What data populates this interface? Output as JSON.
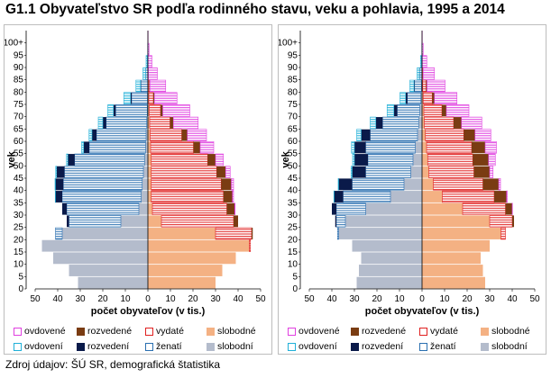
{
  "title": "G1.1 Obyvateľstvo SR podľa rodinného stavu, veku a pohlavia, 1995 a 2014",
  "source": "Zdroj údajov: ŠÚ SR, demografická štatistika",
  "colors": {
    "ovdovene": "#e040e0",
    "rozvedene": "#7a3c12",
    "vydate": "#e02020",
    "slobodne": "#f4b183",
    "ovdoveni": "#20b0d8",
    "rozvedeni": "#0a1a4a",
    "zenati": "#2a6fb0",
    "slobodni": "#b4bccc"
  },
  "legend": [
    {
      "key": "ovdovene",
      "label": "ovdovené",
      "style": "outline"
    },
    {
      "key": "rozvedene",
      "label": "rozvedené",
      "style": "fill"
    },
    {
      "key": "vydate",
      "label": "vydaté",
      "style": "outline"
    },
    {
      "key": "slobodne",
      "label": "slobodné",
      "style": "fill"
    },
    {
      "key": "ovdoveni",
      "label": "ovdovení",
      "style": "outline"
    },
    {
      "key": "rozvedeni",
      "label": "rozvedení",
      "style": "fill"
    },
    {
      "key": "zenati",
      "label": "ženatí",
      "style": "outline"
    },
    {
      "key": "slobodni",
      "label": "slobodní",
      "style": "fill"
    }
  ],
  "chart_data": [
    {
      "type": "bar",
      "orientation": "horizontal-stacked-pyramid",
      "panel": "1995",
      "xlabel": "počet obyvateľov (v tis.)",
      "ylabel": "vek",
      "xlim": [
        -50,
        50
      ],
      "xticks": [
        "50",
        "40",
        "30",
        "20",
        "10",
        "0",
        "10",
        "20",
        "30",
        "40",
        "50"
      ],
      "yticks": [
        "0",
        "5",
        "10",
        "15",
        "20",
        "25",
        "30",
        "35",
        "40",
        "45",
        "50",
        "55",
        "60",
        "65",
        "70",
        "75",
        "80",
        "85",
        "90",
        "95",
        "100+"
      ],
      "age_groups": [
        "0",
        "5",
        "10",
        "15",
        "20",
        "25",
        "30",
        "35",
        "40",
        "45",
        "50",
        "55",
        "60",
        "65",
        "70",
        "75",
        "80",
        "85",
        "90",
        "95",
        "100+"
      ],
      "men_order": [
        "slobodni",
        "zenati",
        "rozvedeni",
        "ovdoveni"
      ],
      "women_order": [
        "slobodne",
        "vydate",
        "rozvedene",
        "ovdovene"
      ],
      "men": {
        "slobodni": [
          31,
          35,
          42,
          47,
          38,
          12,
          4,
          3,
          2.5,
          2,
          1.5,
          1,
          0.8,
          0.5,
          0.3,
          0.2,
          0.1,
          0,
          0,
          0,
          0
        ],
        "zenati": [
          0,
          0,
          0,
          0,
          3,
          23,
          32,
          35,
          35,
          35,
          31,
          25,
          22,
          18,
          14,
          7,
          3,
          1,
          0.3,
          0,
          0
        ],
        "rozvedeni": [
          0,
          0,
          0,
          0,
          0,
          1,
          2,
          3,
          3.5,
          3.5,
          3,
          2.5,
          2,
          1.5,
          1,
          0.5,
          0.2,
          0,
          0,
          0,
          0
        ],
        "ovdoveni": [
          0,
          0,
          0,
          0,
          0,
          0,
          0,
          0.1,
          0.2,
          0.4,
          0.6,
          0.9,
          1.3,
          2,
          2.5,
          3,
          2,
          1.2,
          0.5,
          0.1,
          0
        ]
      },
      "women": {
        "slobodne": [
          30,
          33,
          39,
          45,
          30,
          6,
          2,
          1.5,
          1.5,
          1.5,
          1.5,
          1.2,
          1,
          0.8,
          0.6,
          0.4,
          0.2,
          0.1,
          0,
          0,
          0
        ],
        "vydate": [
          0,
          0,
          0,
          0.5,
          16,
          32,
          33,
          32,
          31,
          29,
          25,
          19,
          14,
          9,
          5,
          2,
          0.5,
          0.1,
          0,
          0,
          0
        ],
        "rozvedene": [
          0,
          0,
          0,
          0,
          0.5,
          2,
          3.5,
          4,
          4.5,
          4,
          3.5,
          3,
          2.5,
          1.5,
          1,
          0.5,
          0.2,
          0,
          0,
          0,
          0
        ],
        "ovdovene": [
          0,
          0,
          0,
          0,
          0,
          0,
          0.2,
          0.5,
          1,
          2,
          3.5,
          6,
          8.5,
          11,
          12,
          10,
          7,
          4,
          1.8,
          0.5,
          0.1
        ]
      }
    },
    {
      "type": "bar",
      "orientation": "horizontal-stacked-pyramid",
      "panel": "2014",
      "xlabel": "počet obyvateľov (v tis.)",
      "ylabel": "vek",
      "xlim": [
        -50,
        50
      ],
      "xticks": [
        "50",
        "40",
        "30",
        "20",
        "10",
        "0",
        "10",
        "20",
        "30",
        "40",
        "50"
      ],
      "yticks": [
        "0",
        "5",
        "10",
        "15",
        "20",
        "25",
        "30",
        "35",
        "40",
        "45",
        "50",
        "55",
        "60",
        "65",
        "70",
        "75",
        "80",
        "85",
        "90",
        "95",
        "100+"
      ],
      "age_groups": [
        "0",
        "5",
        "10",
        "15",
        "20",
        "25",
        "30",
        "35",
        "40",
        "45",
        "50",
        "55",
        "60",
        "65",
        "70",
        "75",
        "80",
        "85",
        "90",
        "95",
        "100+"
      ],
      "men_order": [
        "slobodni",
        "zenati",
        "rozvedeni",
        "ovdoveni"
      ],
      "women_order": [
        "slobodne",
        "vydate",
        "rozvedene",
        "ovdovene"
      ],
      "men": {
        "slobodni": [
          29,
          28,
          27,
          31,
          37,
          34,
          25,
          14,
          8,
          5,
          4,
          3,
          2,
          1.5,
          1,
          0.5,
          0.3,
          0.1,
          0,
          0,
          0
        ],
        "zenati": [
          0,
          0,
          0,
          0,
          0.5,
          4,
          13,
          21,
          23,
          20,
          20,
          22,
          21,
          16,
          10,
          6,
          3,
          1,
          0.3,
          0,
          0
        ],
        "rozvedeni": [
          0,
          0,
          0,
          0,
          0,
          0.5,
          2,
          4,
          6,
          6,
          6,
          5,
          4,
          3,
          1.5,
          0.8,
          0.3,
          0.1,
          0,
          0,
          0
        ],
        "ovdoveni": [
          0,
          0,
          0,
          0,
          0,
          0,
          0,
          0.1,
          0.2,
          0.5,
          0.8,
          1.3,
          2,
          2.5,
          3,
          2.5,
          1.8,
          1,
          0.4,
          0.1,
          0
        ]
      },
      "women": {
        "slobodne": [
          28,
          27,
          26,
          30,
          35,
          30,
          18,
          9,
          5,
          3,
          2.5,
          2,
          1.5,
          1,
          0.8,
          0.5,
          0.3,
          0.1,
          0,
          0,
          0
        ],
        "vydate": [
          0,
          0,
          0,
          0,
          2,
          10,
          19,
          23,
          22,
          20,
          20,
          20,
          17,
          13,
          8,
          4,
          1.5,
          0.3,
          0.1,
          0,
          0
        ],
        "rozvedene": [
          0,
          0,
          0,
          0,
          0,
          0.8,
          3,
          5.5,
          7,
          7,
          7,
          6,
          5,
          3.5,
          2,
          1,
          0.4,
          0.1,
          0,
          0,
          0
        ],
        "ovdovene": [
          0,
          0,
          0,
          0,
          0,
          0,
          0.1,
          0.3,
          0.8,
          1.5,
          3,
          5,
          7,
          9,
          10,
          10,
          8,
          5,
          2,
          0.5,
          0.1
        ]
      }
    }
  ]
}
